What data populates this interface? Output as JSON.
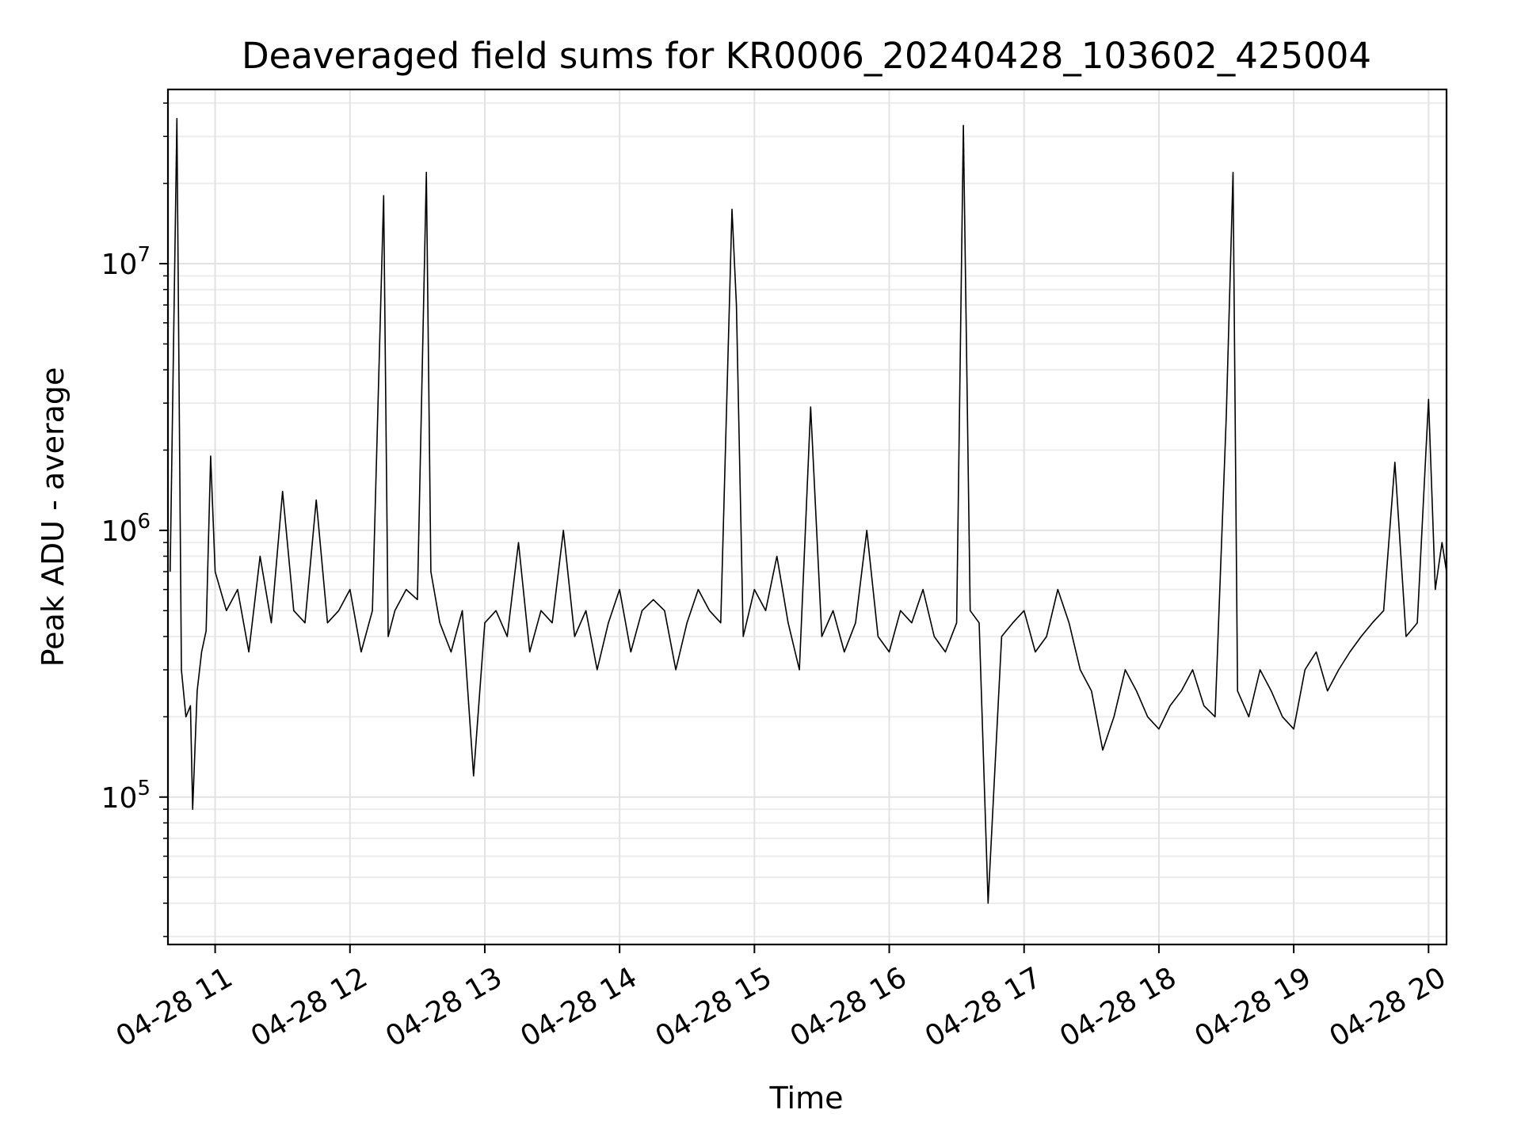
{
  "chart_data": {
    "type": "line",
    "title": "Deaveraged field sums for KR0006_20240428_103602_425004",
    "xlabel": "Time",
    "ylabel": "Peak ADU - average",
    "xlim": [
      "2024-04-28 10:39",
      "2024-04-28 20:08"
    ],
    "ylim": [
      28000,
      45000000
    ],
    "yscale": "log",
    "grid": true,
    "line_color": "#000000",
    "x_tick_labels": [
      "04-28 11",
      "04-28 12",
      "04-28 13",
      "04-28 14",
      "04-28 15",
      "04-28 16",
      "04-28 17",
      "04-28 18",
      "04-28 19",
      "04-28 20"
    ],
    "y_tick_labels": [
      {
        "value": 100000,
        "base": "10",
        "exp": "5"
      },
      {
        "value": 1000000,
        "base": "10",
        "exp": "6"
      },
      {
        "value": 10000000,
        "base": "10",
        "exp": "7"
      }
    ],
    "series": [
      {
        "x": [
          "2024-04-28 10:40",
          "2024-04-28 10:43",
          "2024-04-28 10:45",
          "2024-04-28 10:47",
          "2024-04-28 10:49",
          "2024-04-28 10:50",
          "2024-04-28 10:52",
          "2024-04-28 10:54",
          "2024-04-28 10:56",
          "2024-04-28 10:58",
          "2024-04-28 11:00",
          "2024-04-28 11:05",
          "2024-04-28 11:10",
          "2024-04-28 11:15",
          "2024-04-28 11:20",
          "2024-04-28 11:25",
          "2024-04-28 11:30",
          "2024-04-28 11:35",
          "2024-04-28 11:40",
          "2024-04-28 11:45",
          "2024-04-28 11:50",
          "2024-04-28 11:55",
          "2024-04-28 12:00",
          "2024-04-28 12:05",
          "2024-04-28 12:10",
          "2024-04-28 12:15",
          "2024-04-28 12:17",
          "2024-04-28 12:20",
          "2024-04-28 12:25",
          "2024-04-28 12:30",
          "2024-04-28 12:34",
          "2024-04-28 12:36",
          "2024-04-28 12:40",
          "2024-04-28 12:45",
          "2024-04-28 12:50",
          "2024-04-28 12:55",
          "2024-04-28 13:00",
          "2024-04-28 13:05",
          "2024-04-28 13:10",
          "2024-04-28 13:15",
          "2024-04-28 13:20",
          "2024-04-28 13:25",
          "2024-04-28 13:30",
          "2024-04-28 13:35",
          "2024-04-28 13:40",
          "2024-04-28 13:45",
          "2024-04-28 13:50",
          "2024-04-28 13:55",
          "2024-04-28 14:00",
          "2024-04-28 14:05",
          "2024-04-28 14:10",
          "2024-04-28 14:15",
          "2024-04-28 14:20",
          "2024-04-28 14:25",
          "2024-04-28 14:30",
          "2024-04-28 14:35",
          "2024-04-28 14:40",
          "2024-04-28 14:45",
          "2024-04-28 14:50",
          "2024-04-28 14:52",
          "2024-04-28 14:55",
          "2024-04-28 15:00",
          "2024-04-28 15:05",
          "2024-04-28 15:10",
          "2024-04-28 15:15",
          "2024-04-28 15:20",
          "2024-04-28 15:25",
          "2024-04-28 15:30",
          "2024-04-28 15:35",
          "2024-04-28 15:40",
          "2024-04-28 15:45",
          "2024-04-28 15:50",
          "2024-04-28 15:55",
          "2024-04-28 16:00",
          "2024-04-28 16:05",
          "2024-04-28 16:10",
          "2024-04-28 16:15",
          "2024-04-28 16:20",
          "2024-04-28 16:25",
          "2024-04-28 16:30",
          "2024-04-28 16:33",
          "2024-04-28 16:36",
          "2024-04-28 16:40",
          "2024-04-28 16:44",
          "2024-04-28 16:50",
          "2024-04-28 16:55",
          "2024-04-28 17:00",
          "2024-04-28 17:05",
          "2024-04-28 17:10",
          "2024-04-28 17:15",
          "2024-04-28 17:20",
          "2024-04-28 17:25",
          "2024-04-28 17:30",
          "2024-04-28 17:35",
          "2024-04-28 17:40",
          "2024-04-28 17:45",
          "2024-04-28 17:50",
          "2024-04-28 17:55",
          "2024-04-28 18:00",
          "2024-04-28 18:05",
          "2024-04-28 18:10",
          "2024-04-28 18:15",
          "2024-04-28 18:20",
          "2024-04-28 18:25",
          "2024-04-28 18:30",
          "2024-04-28 18:33",
          "2024-04-28 18:35",
          "2024-04-28 18:40",
          "2024-04-28 18:45",
          "2024-04-28 18:50",
          "2024-04-28 18:55",
          "2024-04-28 19:00",
          "2024-04-28 19:05",
          "2024-04-28 19:10",
          "2024-04-28 19:15",
          "2024-04-28 19:20",
          "2024-04-28 19:25",
          "2024-04-28 19:30",
          "2024-04-28 19:35",
          "2024-04-28 19:40",
          "2024-04-28 19:45",
          "2024-04-28 19:50",
          "2024-04-28 19:55",
          "2024-04-28 20:00",
          "2024-04-28 20:03",
          "2024-04-28 20:06",
          "2024-04-28 20:08"
        ],
        "y": [
          700000,
          35000000,
          300000,
          200000,
          220000,
          90000,
          250000,
          350000,
          420000,
          1900000,
          700000,
          500000,
          600000,
          350000,
          800000,
          450000,
          1400000,
          500000,
          450000,
          1300000,
          450000,
          500000,
          600000,
          350000,
          500000,
          18000000,
          400000,
          500000,
          600000,
          550000,
          22000000,
          700000,
          450000,
          350000,
          500000,
          120000,
          450000,
          500000,
          400000,
          900000,
          350000,
          500000,
          450000,
          1000000,
          400000,
          500000,
          300000,
          450000,
          600000,
          350000,
          500000,
          550000,
          500000,
          300000,
          450000,
          600000,
          500000,
          450000,
          16000000,
          7000000,
          400000,
          600000,
          500000,
          800000,
          450000,
          300000,
          2900000,
          400000,
          500000,
          350000,
          450000,
          1000000,
          400000,
          350000,
          500000,
          450000,
          600000,
          400000,
          350000,
          450000,
          33000000,
          500000,
          450000,
          40000,
          400000,
          450000,
          500000,
          350000,
          400000,
          600000,
          450000,
          300000,
          250000,
          150000,
          200000,
          300000,
          250000,
          200000,
          180000,
          220000,
          250000,
          300000,
          220000,
          200000,
          2700000,
          22000000,
          250000,
          200000,
          300000,
          250000,
          200000,
          180000,
          300000,
          350000,
          250000,
          300000,
          350000,
          400000,
          450000,
          500000,
          1800000,
          400000,
          450000,
          3100000,
          600000,
          900000,
          700000
        ]
      }
    ]
  }
}
